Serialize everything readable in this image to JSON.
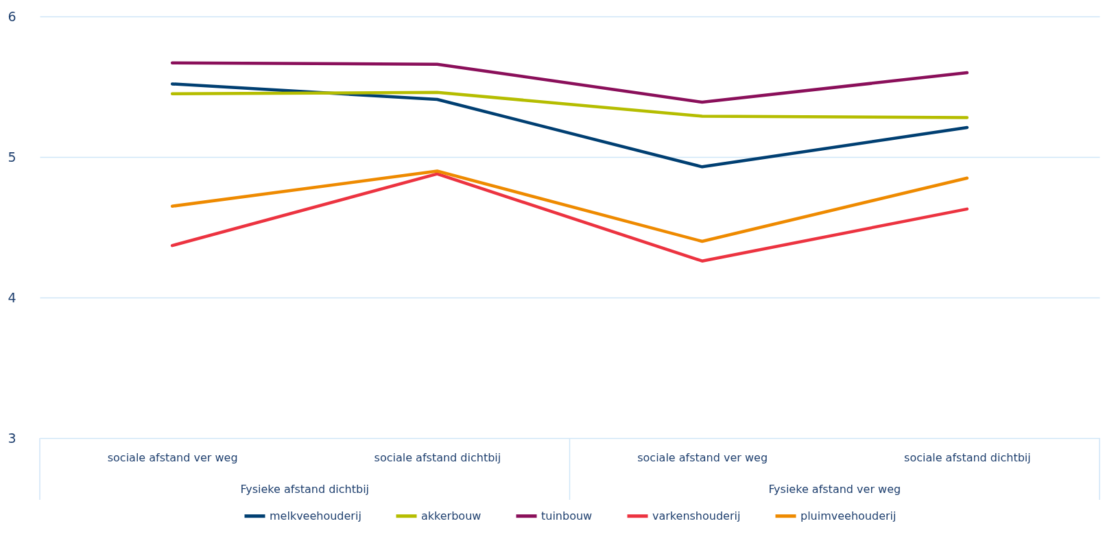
{
  "chart_data": {
    "type": "line",
    "categories": [
      "sociale afstand ver weg",
      "sociale afstand dichtbij",
      "sociale afstand ver weg",
      "sociale afstand dichtbij"
    ],
    "series": [
      {
        "name": "melkveehouderij",
        "color": "#003f72",
        "values": [
          5.52,
          5.41,
          4.93,
          5.21
        ]
      },
      {
        "name": "akkerbouw",
        "color": "#b5bd00",
        "values": [
          5.45,
          5.46,
          5.29,
          5.28
        ]
      },
      {
        "name": "tuinbouw",
        "color": "#8a0f5a",
        "values": [
          5.67,
          5.66,
          5.39,
          5.6
        ]
      },
      {
        "name": "varkenshouderij",
        "color": "#ec3340",
        "values": [
          4.37,
          4.88,
          4.26,
          4.63
        ]
      },
      {
        "name": "pluimveehouderij",
        "color": "#ee8a00",
        "values": [
          4.65,
          4.9,
          4.4,
          4.85
        ]
      }
    ],
    "annotations": [
      "Fysieke afstand dichtbij",
      "Fysieke afstand ver weg"
    ],
    "ylim": [
      3,
      6
    ],
    "yticks": [
      3,
      4,
      5,
      6
    ],
    "grid": "y",
    "legend": "bottom",
    "marker": "none",
    "line_style": "solid"
  }
}
